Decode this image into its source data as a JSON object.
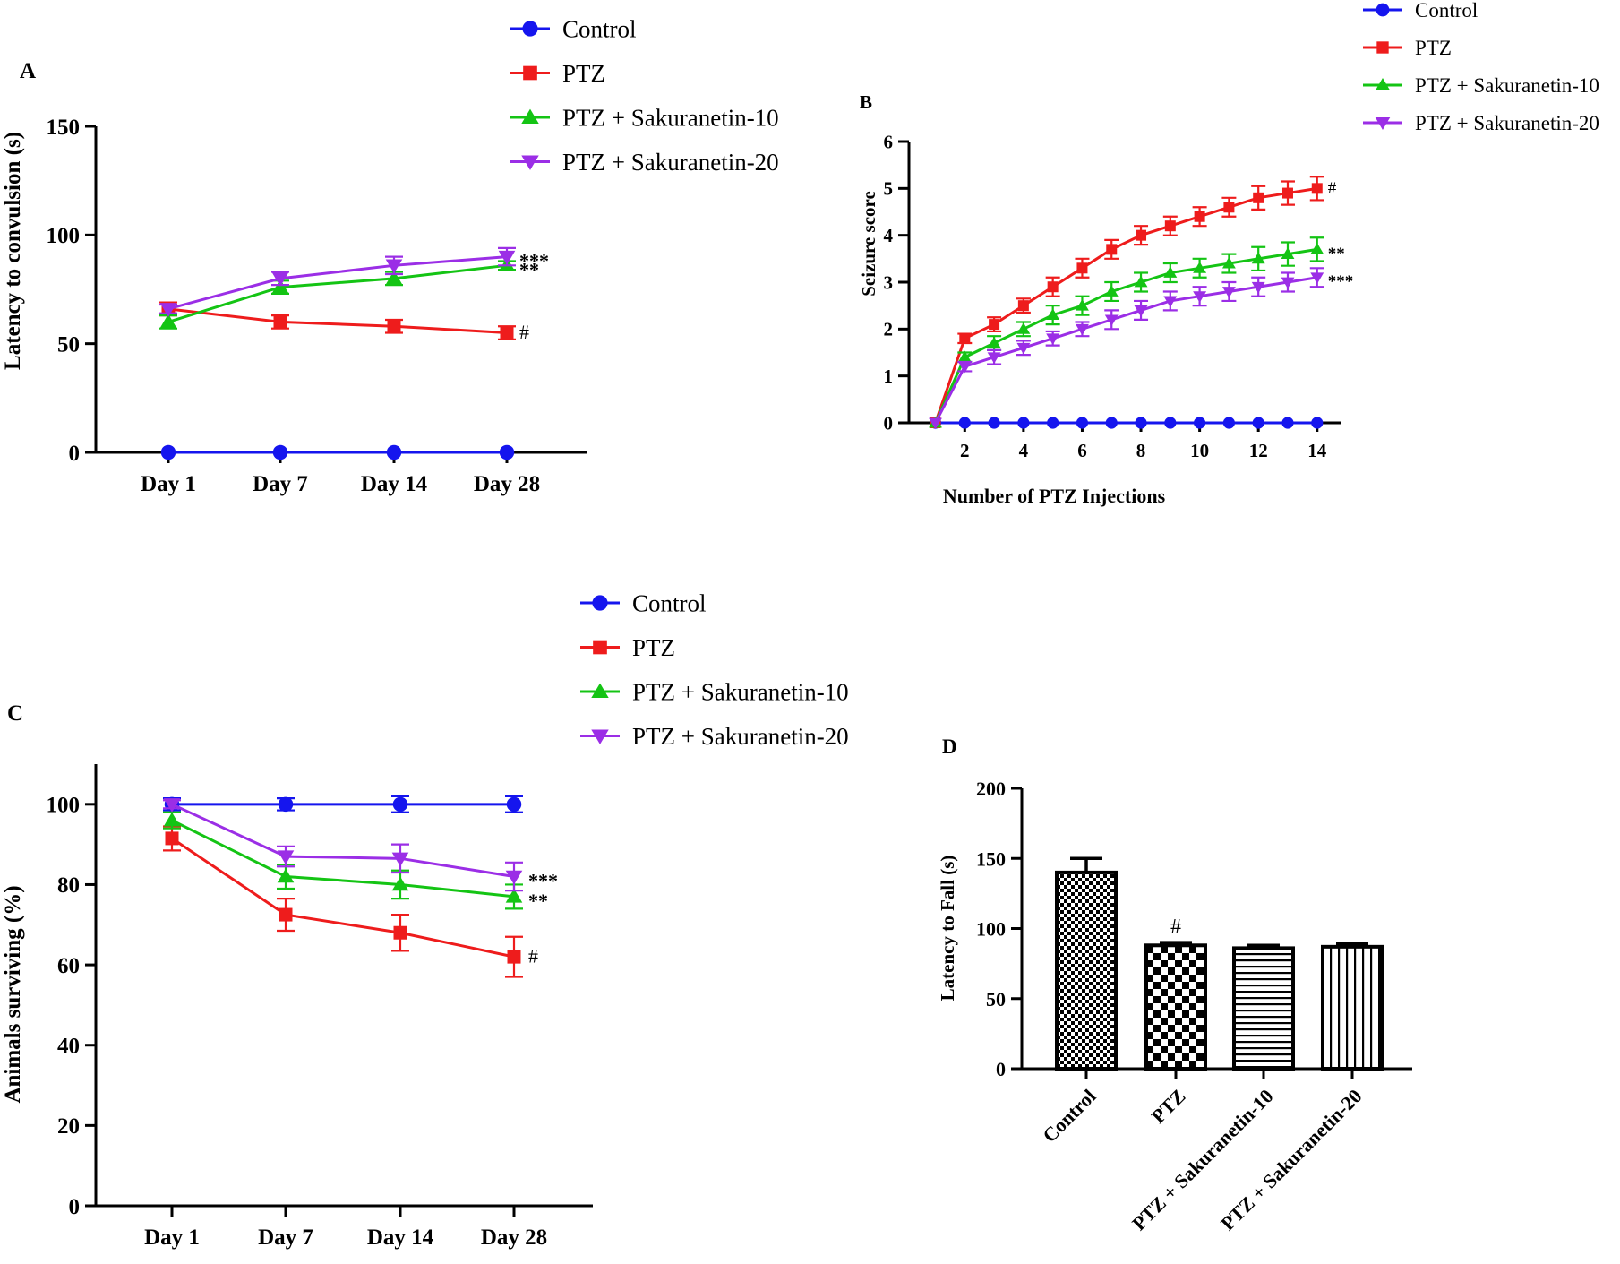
{
  "colors": {
    "control": "#1515ee",
    "ptz": "#ee1c1c",
    "sak10": "#14c414",
    "sak20": "#9b2ee6",
    "axis": "#000000"
  },
  "chart_data": [
    {
      "panel": "A",
      "type": "line",
      "ylabel": "Latency to convulsion (s)",
      "xlabel": "",
      "categories": [
        "Day 1",
        "Day 7",
        "Day 14",
        "Day 28"
      ],
      "ylim": [
        0,
        150
      ],
      "yticks": [
        0,
        50,
        100,
        150
      ],
      "series": [
        {
          "key": "control",
          "name": "Control",
          "marker": "circle",
          "values": [
            0,
            0,
            0,
            0
          ],
          "errors": [
            0,
            0,
            0,
            0
          ]
        },
        {
          "key": "ptz",
          "name": "PTZ",
          "marker": "square",
          "values": [
            66,
            60,
            58,
            55
          ],
          "errors": [
            3,
            3,
            3,
            3
          ]
        },
        {
          "key": "sak10",
          "name": "PTZ + Sakuranetin-10",
          "marker": "triangle-up",
          "values": [
            60,
            76,
            80,
            86
          ],
          "errors": [
            3,
            3,
            3,
            2
          ]
        },
        {
          "key": "sak20",
          "name": "PTZ + Sakuranetin-20",
          "marker": "triangle-down",
          "values": [
            66,
            80,
            86,
            90
          ],
          "errors": [
            2,
            3,
            4,
            4
          ]
        }
      ],
      "annotations": [
        {
          "series": "sak20",
          "text": "***"
        },
        {
          "series": "sak10",
          "text": "**"
        },
        {
          "series": "ptz",
          "text": "#"
        }
      ]
    },
    {
      "panel": "B",
      "type": "line",
      "ylabel": "Seizure score",
      "xlabel": "Number of PTZ Injections",
      "x": [
        1,
        2,
        3,
        4,
        5,
        6,
        7,
        8,
        9,
        10,
        11,
        12,
        13,
        14
      ],
      "xticks": [
        2,
        4,
        6,
        8,
        10,
        12,
        14
      ],
      "xlim": [
        0.1,
        14.8
      ],
      "ylim": [
        0,
        6
      ],
      "yticks": [
        0,
        1,
        2,
        3,
        4,
        5,
        6
      ],
      "series": [
        {
          "key": "control",
          "name": "Control",
          "marker": "circle",
          "values": [
            0,
            0,
            0,
            0,
            0,
            0,
            0,
            0,
            0,
            0,
            0,
            0,
            0,
            0
          ],
          "errors": [
            0,
            0,
            0,
            0,
            0,
            0,
            0,
            0,
            0,
            0,
            0,
            0,
            0,
            0
          ]
        },
        {
          "key": "ptz",
          "name": "PTZ",
          "marker": "square",
          "values": [
            0,
            1.8,
            2.1,
            2.5,
            2.9,
            3.3,
            3.7,
            4.0,
            4.2,
            4.4,
            4.6,
            4.8,
            4.9,
            5.0
          ],
          "errors": [
            0,
            0.1,
            0.15,
            0.15,
            0.2,
            0.2,
            0.2,
            0.2,
            0.2,
            0.2,
            0.2,
            0.25,
            0.25,
            0.25
          ]
        },
        {
          "key": "sak10",
          "name": "PTZ + Sakuranetin-10",
          "marker": "triangle-up",
          "values": [
            0,
            1.4,
            1.7,
            2.0,
            2.3,
            2.5,
            2.8,
            3.0,
            3.2,
            3.3,
            3.4,
            3.5,
            3.6,
            3.7
          ],
          "errors": [
            0,
            0.1,
            0.15,
            0.15,
            0.2,
            0.2,
            0.2,
            0.2,
            0.2,
            0.2,
            0.2,
            0.25,
            0.25,
            0.25
          ]
        },
        {
          "key": "sak20",
          "name": "PTZ + Sakuranetin-20",
          "marker": "triangle-down",
          "values": [
            0,
            1.2,
            1.4,
            1.6,
            1.8,
            2.0,
            2.2,
            2.4,
            2.6,
            2.7,
            2.8,
            2.9,
            3.0,
            3.1
          ],
          "errors": [
            0,
            0.1,
            0.15,
            0.15,
            0.15,
            0.15,
            0.2,
            0.2,
            0.2,
            0.2,
            0.2,
            0.2,
            0.2,
            0.2
          ]
        }
      ],
      "annotations": [
        {
          "series": "ptz",
          "text": "#"
        },
        {
          "series": "sak10",
          "text": "**"
        },
        {
          "series": "sak20",
          "text": "***"
        }
      ]
    },
    {
      "panel": "C",
      "type": "line",
      "ylabel": "Animals surviving (%)",
      "xlabel": "",
      "categories": [
        "Day 1",
        "Day 7",
        "Day 14",
        "Day 28"
      ],
      "ylim": [
        0,
        110
      ],
      "yticks": [
        0,
        20,
        40,
        60,
        80,
        100
      ],
      "series": [
        {
          "key": "control",
          "name": "Control",
          "marker": "circle",
          "values": [
            100,
            100,
            100,
            100
          ],
          "errors": [
            1.5,
            1.5,
            2,
            2
          ]
        },
        {
          "key": "ptz",
          "name": "PTZ",
          "marker": "square",
          "values": [
            91.5,
            72.5,
            68,
            62
          ],
          "errors": [
            3,
            4,
            4.5,
            5
          ]
        },
        {
          "key": "sak10",
          "name": "PTZ + Sakuranetin-10",
          "marker": "triangle-up",
          "values": [
            96,
            82,
            80,
            77
          ],
          "errors": [
            2,
            3,
            3.5,
            3
          ]
        },
        {
          "key": "sak20",
          "name": "PTZ + Sakuranetin-20",
          "marker": "triangle-down",
          "values": [
            100,
            87,
            86.5,
            82
          ],
          "errors": [
            1,
            2.5,
            3.5,
            3.5
          ]
        }
      ],
      "annotations": [
        {
          "series": "sak20",
          "text": "***"
        },
        {
          "series": "sak10",
          "text": "**"
        },
        {
          "series": "ptz",
          "text": "#"
        }
      ]
    },
    {
      "panel": "D",
      "type": "bar",
      "ylabel": "Latency to Fall (s)",
      "xlabel": "",
      "categories": [
        "Control",
        "PTZ",
        "PTZ + Sakuranetin-10",
        "PTZ + Sakuranetin-20"
      ],
      "values": [
        140,
        88,
        86,
        87
      ],
      "errors": [
        10,
        2,
        2,
        2
      ],
      "patterns": [
        "fine-check",
        "check",
        "horizontal",
        "vertical"
      ],
      "ylim": [
        0,
        200
      ],
      "yticks": [
        0,
        50,
        100,
        150,
        200
      ],
      "annotations": [
        {
          "index": 1,
          "text": "#"
        }
      ]
    }
  ]
}
